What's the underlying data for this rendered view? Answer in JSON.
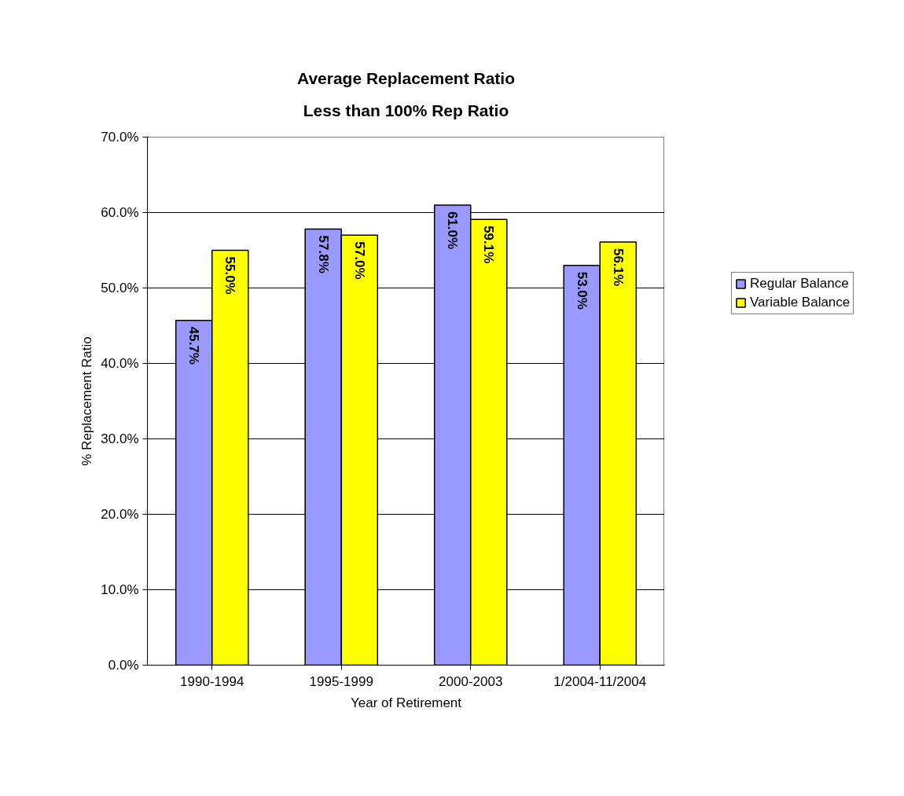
{
  "chart_data": {
    "type": "bar",
    "title": "Average Replacement Ratio",
    "subtitle": "Less than 100% Rep Ratio",
    "xlabel": "Year of Retirement",
    "ylabel": "% Replacement Ratio",
    "categories": [
      "1990-1994",
      "1995-1999",
      "2000-2003",
      "1/2004-11/2004"
    ],
    "series": [
      {
        "name": "Regular Balance",
        "color": "#9999ff",
        "values": [
          45.7,
          57.8,
          61.0,
          53.0
        ],
        "value_labels": [
          "45.7%",
          "57.8%",
          "61.0%",
          "53.0%"
        ]
      },
      {
        "name": "Variable Balance",
        "color": "#ffff00",
        "values": [
          55.0,
          57.0,
          59.1,
          56.1
        ],
        "value_labels": [
          "55.0%",
          "57.0%",
          "59.1%",
          "56.1%"
        ]
      }
    ],
    "ylim": [
      0,
      70
    ],
    "yticks": [
      {
        "value": 0,
        "label": "0.0%"
      },
      {
        "value": 10,
        "label": "10.0%"
      },
      {
        "value": 20,
        "label": "20.0%"
      },
      {
        "value": 30,
        "label": "30.0%"
      },
      {
        "value": 40,
        "label": "40.0%"
      },
      {
        "value": 50,
        "label": "50.0%"
      },
      {
        "value": 60,
        "label": "60.0%"
      },
      {
        "value": 70,
        "label": "70.0%"
      }
    ],
    "grid": "y",
    "legend": "right"
  }
}
